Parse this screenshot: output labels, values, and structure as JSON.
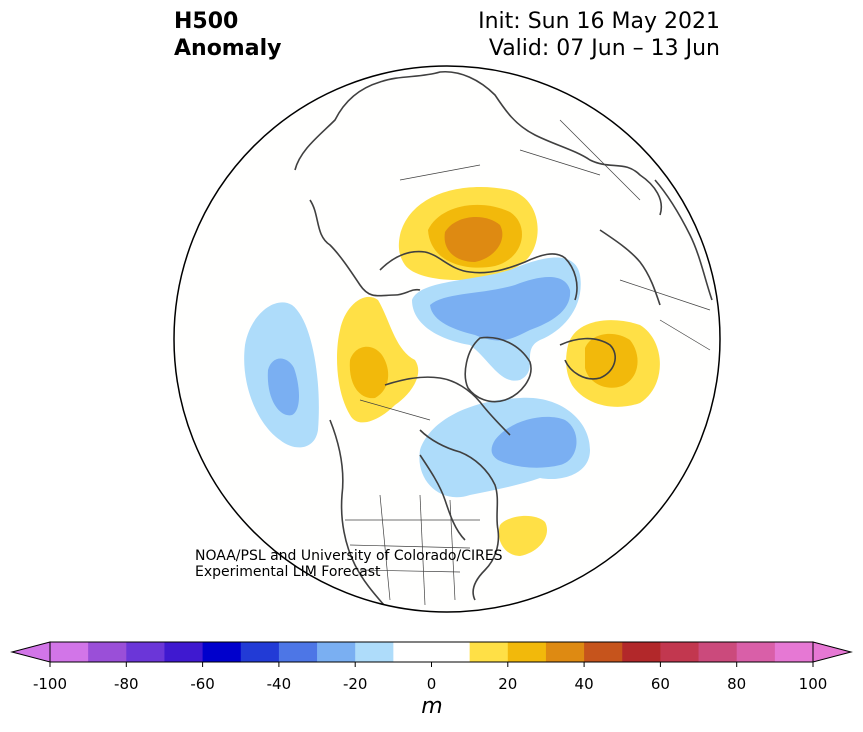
{
  "header": {
    "title_line1": "H500",
    "title_line2": "Anomaly",
    "init": "Init: Sun 16 May 2021",
    "valid": "Valid: 07 Jun – 13 Jun"
  },
  "credit": {
    "line1": "NOAA/PSL and University of Colorado/CIRES",
    "line2": "Experimental LIM Forecast"
  },
  "colorbar": {
    "units": "m",
    "ticks": [
      "-100",
      "-80",
      "-60",
      "-40",
      "-20",
      "0",
      "20",
      "40",
      "60",
      "80",
      "100"
    ],
    "levels": [
      -100,
      -90,
      -80,
      -70,
      -60,
      -50,
      -40,
      -30,
      -20,
      -10,
      10,
      20,
      30,
      40,
      50,
      60,
      70,
      80,
      90,
      100
    ],
    "colors": [
      "#d275e8",
      "#9a4fd8",
      "#6b36d8",
      "#3f19d0",
      "#0000cc",
      "#223bd6",
      "#4d76e6",
      "#7aaff2",
      "#aedcfa",
      "#ffffff",
      "#ffffff",
      "#ffe046",
      "#f2b90b",
      "#de8a12",
      "#c6541c",
      "#b2282a",
      "#c2374f",
      "#cb4a7c",
      "#d95fa8",
      "#e678d4"
    ],
    "extend_low_color": "#d275e8",
    "extend_high_color": "#e678d4"
  },
  "map": {
    "projection": "north-polar-stereographic",
    "land_outline_color": "#404040",
    "anomaly_centers": [
      {
        "region": "northern Russia / Kara Sea",
        "sign": "positive",
        "peak_m": 40
      },
      {
        "region": "Arctic Ocean / Laptev Sea",
        "sign": "negative",
        "peak_m": -30
      },
      {
        "region": "Alaska",
        "sign": "positive",
        "peak_m": 30
      },
      {
        "region": "North Pacific",
        "sign": "negative",
        "peak_m": -30
      },
      {
        "region": "Hudson Bay / Labrador Sea",
        "sign": "negative",
        "peak_m": -30
      },
      {
        "region": "Greenland / Iceland",
        "sign": "positive",
        "peak_m": 30
      },
      {
        "region": "western Atlantic off US east coast",
        "sign": "positive",
        "peak_m": 20
      }
    ]
  }
}
